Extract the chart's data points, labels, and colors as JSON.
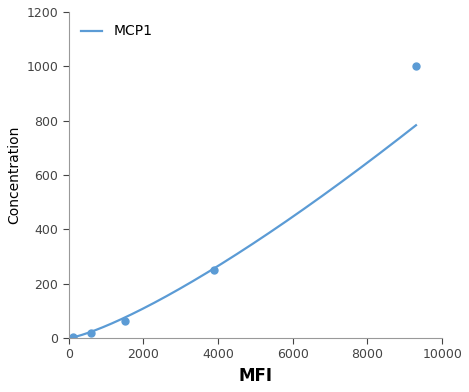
{
  "x_points": [
    100,
    600,
    1500,
    3900,
    9300
  ],
  "y_points": [
    3,
    18,
    62,
    250,
    1000
  ],
  "line_color": "#5B9BD5",
  "marker_color": "#5B9BD5",
  "marker_style": "o",
  "marker_size": 5,
  "line_width": 1.6,
  "xlabel": "MFI",
  "ylabel": "Concentration",
  "legend_label": "MCP1",
  "xlim": [
    0,
    10000
  ],
  "ylim": [
    0,
    1200
  ],
  "xticks": [
    0,
    2000,
    4000,
    6000,
    8000,
    10000
  ],
  "yticks": [
    0,
    200,
    400,
    600,
    800,
    1000,
    1200
  ],
  "xlabel_fontsize": 12,
  "ylabel_fontsize": 10,
  "tick_fontsize": 9,
  "legend_fontsize": 10,
  "background_color": "#ffffff",
  "grid": false
}
